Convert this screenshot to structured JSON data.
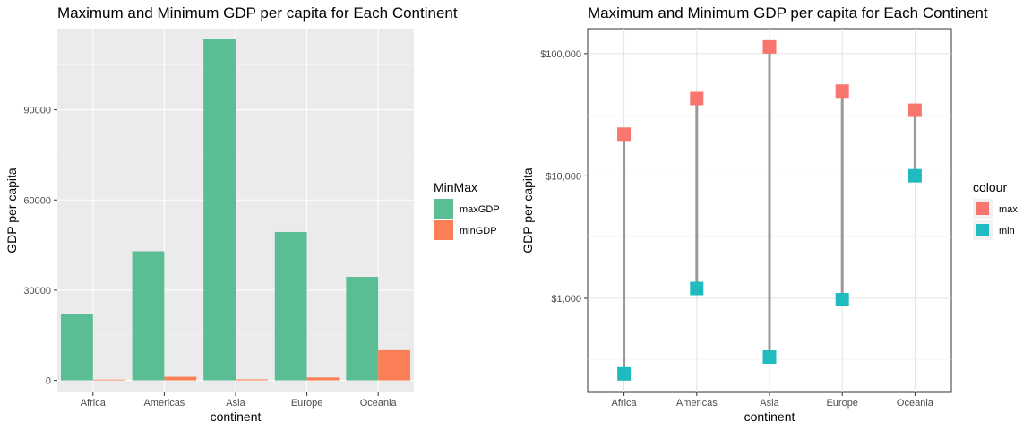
{
  "chart_data": [
    {
      "type": "bar",
      "title": "Maximum and Minimum GDP per capita for Each Continent",
      "xlabel": "continent",
      "ylabel": "GDP per capita",
      "categories": [
        "Africa",
        "Americas",
        "Asia",
        "Europe",
        "Oceania"
      ],
      "series": [
        {
          "name": "maxGDP",
          "color": "#5ABD94",
          "values": [
            21951,
            42952,
            113523,
            49357,
            34435
          ]
        },
        {
          "name": "minGDP",
          "color": "#FA7F56",
          "values": [
            241,
            1202,
            331,
            974,
            10040
          ]
        }
      ],
      "ylim": [
        -4000,
        117000
      ],
      "yticks": [
        0,
        30000,
        60000,
        90000
      ],
      "ytick_labels": [
        "0",
        "30000",
        "60000",
        "90000"
      ],
      "grid": true,
      "legend": {
        "title": "MinMax",
        "placement": "right",
        "entries": [
          "maxGDP",
          "minGDP"
        ]
      }
    },
    {
      "type": "scatter",
      "title": "Maximum and Minimum GDP per capita for Each Continent",
      "xlabel": "continent",
      "ylabel": "GDP per capita",
      "categories": [
        "Africa",
        "Americas",
        "Asia",
        "Europe",
        "Oceania"
      ],
      "yscale": "log10",
      "series": [
        {
          "name": "max",
          "color": "#F8766D",
          "values": [
            21951,
            42952,
            113523,
            49357,
            34435
          ]
        },
        {
          "name": "min",
          "color": "#20BBBE",
          "values": [
            241,
            1202,
            331,
            974,
            10040
          ]
        }
      ],
      "segment_color": "#999999",
      "ylim": [
        170,
        160000
      ],
      "yticks": [
        1000,
        10000,
        100000
      ],
      "ytick_labels": [
        "$1,000",
        "$10,000",
        "$100,000"
      ],
      "grid": true,
      "legend": {
        "title": "colour",
        "placement": "right",
        "entries": [
          "max",
          "min"
        ]
      }
    }
  ]
}
